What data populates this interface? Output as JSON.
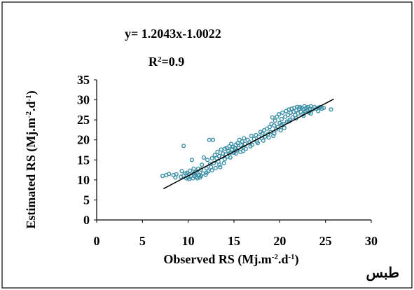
{
  "chart_data": {
    "type": "scatter",
    "title": "",
    "equation": {
      "base": "y= 1.2043x-1.0022"
    },
    "r_squared": {
      "prefix": "R",
      "sup": "2",
      "suffix": "=0.9"
    },
    "xlabel": {
      "main": "Observed  RS  (Mj.m",
      "sup1": "-2",
      "mid": ".d",
      "sup2": "-1",
      "end": ")"
    },
    "ylabel": {
      "main": "Estimated RS  (Mj.m",
      "sup1": "-2",
      "mid": ".d",
      "sup2": "-1",
      "end": ")"
    },
    "corner_label": "طبس",
    "xlim": [
      0,
      30
    ],
    "ylim": [
      0,
      35
    ],
    "xticks": [
      "0",
      "5",
      "10",
      "15",
      "20",
      "25",
      "30"
    ],
    "yticks": [
      "0",
      "5",
      "10",
      "15",
      "20",
      "25",
      "30",
      "35"
    ],
    "grid": false,
    "legend": "none",
    "colors": {
      "marker": "#3a8ea6",
      "trendline": "#000000",
      "axis": "#000000"
    },
    "trendline": {
      "x": [
        7.3,
        25.9
      ],
      "y": [
        7.8,
        30.2
      ]
    },
    "series": [
      {
        "values": [
          [
            7.2,
            11
          ],
          [
            7.6,
            11.2
          ],
          [
            7.9,
            11.5
          ],
          [
            8.4,
            11.2
          ],
          [
            8.7,
            11.4
          ],
          [
            8.6,
            10.6
          ],
          [
            9.2,
            10.8
          ],
          [
            9.5,
            11.1
          ],
          [
            9.3,
            12.2
          ],
          [
            9.7,
            11.6
          ],
          [
            9.5,
            18.5
          ],
          [
            9.8,
            10.4
          ],
          [
            10.0,
            10.6
          ],
          [
            10.1,
            11.4
          ],
          [
            10.2,
            12.3
          ],
          [
            10.3,
            10.9
          ],
          [
            10.4,
            15.0
          ],
          [
            10.6,
            11.6
          ],
          [
            10.5,
            10.4
          ],
          [
            10.7,
            11.0
          ],
          [
            10.8,
            12.0
          ],
          [
            10.9,
            10.8
          ],
          [
            11.0,
            11.8
          ],
          [
            11.1,
            12.8
          ],
          [
            11.2,
            11.2
          ],
          [
            11.3,
            10.6
          ],
          [
            11.4,
            12.6
          ],
          [
            11.5,
            13.8
          ],
          [
            11.6,
            11.6
          ],
          [
            11.7,
            15.6
          ],
          [
            11.9,
            11.3
          ],
          [
            12.0,
            12.9
          ],
          [
            12.1,
            15.0
          ],
          [
            12.2,
            12.2
          ],
          [
            12.3,
            20.0
          ],
          [
            12.4,
            14.0
          ],
          [
            12.5,
            13.2
          ],
          [
            12.6,
            15.4
          ],
          [
            12.7,
            20.0
          ],
          [
            12.8,
            14.2
          ],
          [
            12.9,
            16.2
          ],
          [
            13.0,
            13.0
          ],
          [
            13.1,
            15.4
          ],
          [
            13.2,
            17.0
          ],
          [
            13.3,
            14.6
          ],
          [
            13.4,
            16.0
          ],
          [
            13.5,
            13.2
          ],
          [
            13.6,
            17.6
          ],
          [
            13.7,
            15.8
          ],
          [
            13.8,
            16.6
          ],
          [
            13.9,
            14.2
          ],
          [
            14.0,
            17.8
          ],
          [
            14.1,
            16.4
          ],
          [
            14.2,
            18.0
          ],
          [
            14.3,
            15.8
          ],
          [
            14.4,
            17.2
          ],
          [
            14.5,
            18.4
          ],
          [
            14.6,
            16.8
          ],
          [
            14.7,
            19.0
          ],
          [
            14.8,
            17.6
          ],
          [
            14.9,
            18.2
          ],
          [
            15.0,
            16.8
          ],
          [
            15.1,
            17.9
          ],
          [
            15.2,
            18.8
          ],
          [
            15.3,
            17.4
          ],
          [
            15.4,
            19.2
          ],
          [
            15.5,
            18.0
          ],
          [
            15.6,
            20.0
          ],
          [
            15.7,
            17.0
          ],
          [
            15.8,
            18.6
          ],
          [
            15.9,
            19.6
          ],
          [
            16.0,
            18.2
          ],
          [
            16.1,
            20.4
          ],
          [
            16.2,
            19.0
          ],
          [
            16.3,
            17.8
          ],
          [
            16.5,
            20.0
          ],
          [
            16.7,
            19.4
          ],
          [
            16.9,
            21.0
          ],
          [
            17.0,
            18.8
          ],
          [
            17.2,
            20.2
          ],
          [
            17.4,
            21.2
          ],
          [
            17.5,
            19.6
          ],
          [
            17.7,
            20.8
          ],
          [
            17.9,
            22.0
          ],
          [
            18.0,
            20.4
          ],
          [
            18.1,
            21.6
          ],
          [
            18.3,
            22.4
          ],
          [
            18.4,
            20.8
          ],
          [
            18.6,
            22.8
          ],
          [
            18.7,
            21.4
          ],
          [
            18.9,
            23.2
          ],
          [
            19.0,
            22.0
          ],
          [
            19.1,
            24.0
          ],
          [
            19.2,
            25.6
          ],
          [
            19.3,
            21.0
          ],
          [
            19.4,
            23.6
          ],
          [
            19.5,
            24.8
          ],
          [
            19.6,
            22.6
          ],
          [
            19.7,
            25.8
          ],
          [
            19.8,
            23.2
          ],
          [
            19.9,
            26.4
          ],
          [
            20.0,
            24.2
          ],
          [
            20.1,
            22.4
          ],
          [
            20.2,
            25.2
          ],
          [
            20.3,
            26.8
          ],
          [
            20.4,
            24.0
          ],
          [
            20.5,
            23.0
          ],
          [
            20.6,
            25.8
          ],
          [
            20.7,
            27.2
          ],
          [
            20.8,
            24.6
          ],
          [
            20.9,
            26.2
          ],
          [
            21.0,
            27.6
          ],
          [
            21.1,
            25.0
          ],
          [
            21.2,
            26.8
          ],
          [
            21.3,
            27.8
          ],
          [
            21.4,
            25.6
          ],
          [
            21.5,
            27.0
          ],
          [
            21.6,
            28.0
          ],
          [
            21.7,
            26.2
          ],
          [
            21.8,
            27.4
          ],
          [
            21.9,
            28.2
          ],
          [
            22.0,
            26.6
          ],
          [
            22.1,
            27.8
          ],
          [
            22.2,
            28.2
          ],
          [
            22.3,
            27.0
          ],
          [
            22.4,
            28.0
          ],
          [
            22.5,
            26.4
          ],
          [
            22.6,
            27.6
          ],
          [
            22.7,
            28.4
          ],
          [
            22.8,
            27.2
          ],
          [
            22.9,
            28.0
          ],
          [
            23.0,
            27.4
          ],
          [
            23.1,
            28.2
          ],
          [
            23.2,
            26.8
          ],
          [
            23.3,
            27.8
          ],
          [
            23.4,
            28.4
          ],
          [
            23.6,
            27.6
          ],
          [
            23.8,
            28.2
          ],
          [
            24.0,
            27.8
          ],
          [
            24.2,
            28.0
          ],
          [
            24.4,
            28.2
          ],
          [
            24.6,
            27.8
          ],
          [
            24.8,
            28.0
          ],
          [
            25.6,
            27.6
          ],
          [
            9.9,
            11.8
          ],
          [
            10.1,
            10.2
          ],
          [
            10.6,
            12.8
          ],
          [
            11.0,
            10.4
          ],
          [
            11.4,
            11.0
          ],
          [
            12.0,
            11.8
          ],
          [
            12.6,
            12.4
          ],
          [
            13.4,
            13.8
          ],
          [
            14.0,
            15.2
          ],
          [
            14.6,
            15.6
          ],
          [
            15.2,
            16.6
          ],
          [
            16.0,
            17.2
          ],
          [
            16.8,
            18.4
          ],
          [
            17.6,
            19.2
          ],
          [
            18.2,
            19.8
          ],
          [
            18.8,
            20.6
          ],
          [
            19.4,
            21.6
          ],
          [
            20.2,
            23.8
          ],
          [
            21.0,
            24.6
          ],
          [
            21.8,
            25.4
          ],
          [
            22.6,
            26.0
          ],
          [
            23.4,
            26.6
          ],
          [
            24.2,
            27.2
          ]
        ]
      }
    ]
  }
}
